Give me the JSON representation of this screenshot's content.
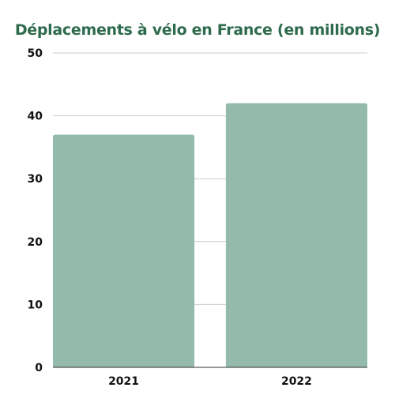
{
  "colors": {
    "title": "#2e6b4d",
    "bar": "#93baab",
    "grid": "#cccccc",
    "baseline": "#333333"
  },
  "chart_data": {
    "type": "bar",
    "title": "Déplacements à vélo en France (en millions)",
    "xlabel": "",
    "ylabel": "",
    "categories": [
      "2021",
      "2022"
    ],
    "values": [
      37,
      42
    ],
    "ylim": [
      0,
      50
    ],
    "yticks": [
      0,
      10,
      20,
      30,
      40,
      50
    ],
    "grid": true,
    "legend": "none"
  }
}
